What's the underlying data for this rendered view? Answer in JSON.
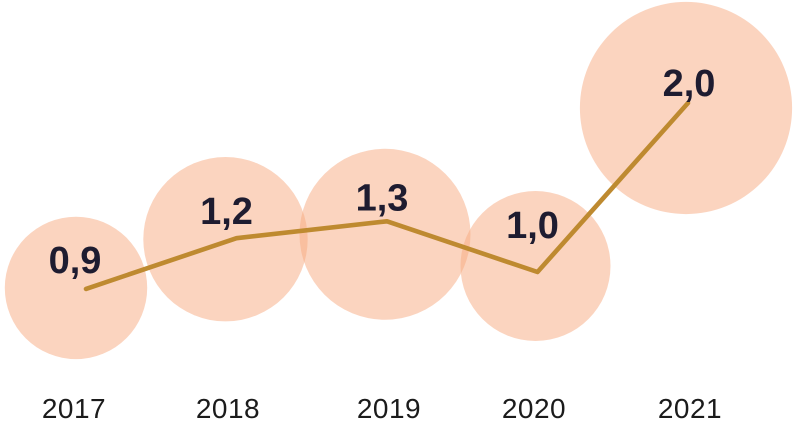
{
  "chart_data": {
    "type": "line",
    "variant": "trend-line-with-area-scaled-bubble-markers",
    "title": "",
    "xlabel": "",
    "ylabel": "",
    "categories": [
      "2017",
      "2018",
      "2019",
      "2020",
      "2021"
    ],
    "values": [
      0.9,
      1.2,
      1.3,
      1.0,
      2.0
    ],
    "value_labels": [
      "0,9",
      "1,2",
      "1,3",
      "1,0",
      "2,0"
    ],
    "decimal_style": "comma",
    "grid": false,
    "legend": false,
    "axes_visible": false,
    "y_implied_range": [
      0,
      2.2
    ],
    "colors": {
      "background": "#FFFFFF",
      "bubble_fill": "#F7AA80",
      "bubble_opacity": 0.5,
      "line": "#BE8A30",
      "value_label": "#1E1C30",
      "category_label": "#1B1B1B"
    }
  }
}
